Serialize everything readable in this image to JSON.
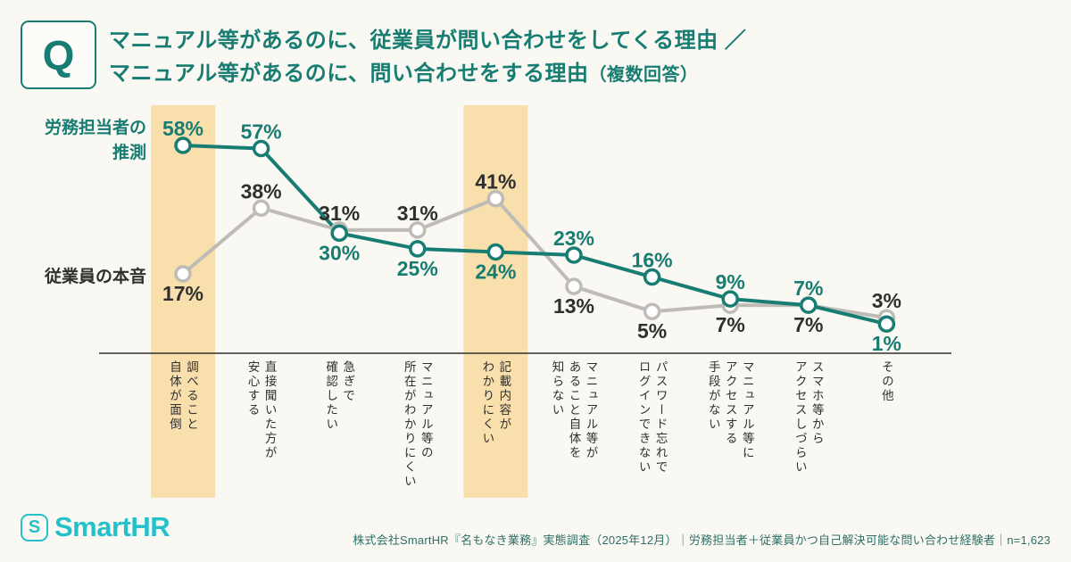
{
  "colors": {
    "background": "#FAF8F2",
    "teal": "#177D72",
    "gray_line": "#BFBCB8",
    "dark_text": "#2F2F2F",
    "highlight_band": "#F8DFAC",
    "marker_fill": "#FFFFFF",
    "axis_line": "#2F2F2F",
    "logo_cyan": "#25C0CA",
    "footer_text": "#2E6F68"
  },
  "header": {
    "q_badge": "Q",
    "title_line1": "マニュアル等があるのに、従業員が問い合わせをしてくる理由 ／",
    "title_line2": "マニュアル等があるのに、問い合わせをする理由",
    "title_line2_note": "（複数回答）"
  },
  "chart_data": {
    "type": "line",
    "unit": "%",
    "ylim": [
      0,
      65
    ],
    "grid": false,
    "legend_position": "left-of-lines",
    "categories": [
      "調べること\n自体が面倒",
      "直接聞いた方が\n安心する",
      "急ぎで\n確認したい",
      "マニュアル等の\n所在がわかりにくい",
      "記載内容が\nわかりにくい",
      "マニュアル等が\nあること自体を\n知らない",
      "パスワード忘れで\nログインできない",
      "マニュアル等に\nアクセスする\n手段がない",
      "スマホ等から\nアクセスしづらい",
      "その他"
    ],
    "highlighted_category_indexes": [
      0,
      4
    ],
    "series": [
      {
        "name": "労務担当者の推測",
        "axis_label": "労務担当者の\n推測",
        "color": "#177D72",
        "label_color": "#177D72",
        "values": [
          58,
          57,
          30,
          25,
          24,
          23,
          16,
          9,
          7,
          1
        ],
        "label_positions": [
          "above",
          "above",
          "below",
          "below",
          "below",
          "above",
          "above",
          "above",
          "above",
          "below"
        ]
      },
      {
        "name": "従業員の本音",
        "axis_label": "従業員の本音",
        "color": "#BFBCB8",
        "label_color": "#2F2F2F",
        "values": [
          17,
          38,
          31,
          31,
          41,
          13,
          5,
          7,
          7,
          3
        ],
        "label_positions": [
          "below",
          "above",
          "above",
          "above",
          "above",
          "below",
          "below",
          "below",
          "below",
          "above"
        ]
      }
    ]
  },
  "footer": {
    "logo_mark": "S",
    "logo_text": "SmartHR",
    "source_text": "株式会社SmartHR『名もなき業務』実態調査（2025年12月）｜労務担当者＋従業員かつ自己解決可能な問い合わせ経験者｜n=1,623"
  }
}
